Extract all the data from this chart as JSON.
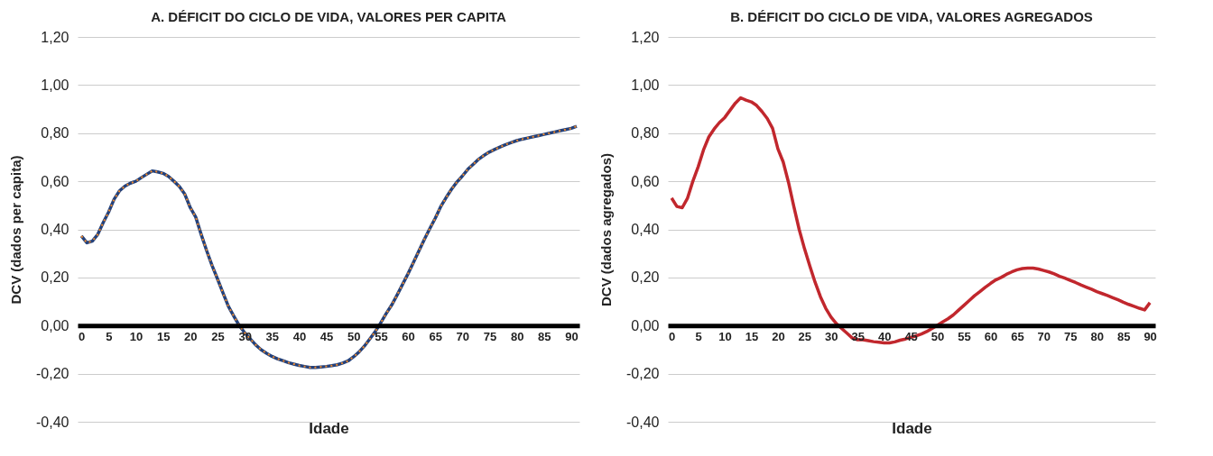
{
  "chart_data": [
    {
      "type": "line",
      "title": "A. DÉFICIT DO CICLO DE VIDA, VALORES PER CAPITA",
      "xlabel": "Idade",
      "ylabel": "DCV (dados per capita)",
      "x": [
        0,
        1,
        2,
        3,
        4,
        5,
        6,
        7,
        8,
        9,
        10,
        11,
        12,
        13,
        14,
        15,
        16,
        17,
        18,
        19,
        20,
        21,
        22,
        23,
        24,
        25,
        26,
        27,
        28,
        29,
        30,
        31,
        32,
        33,
        34,
        35,
        36,
        37,
        38,
        39,
        40,
        41,
        42,
        43,
        44,
        45,
        46,
        47,
        48,
        49,
        50,
        51,
        52,
        53,
        54,
        55,
        56,
        57,
        58,
        59,
        60,
        61,
        62,
        63,
        64,
        65,
        66,
        67,
        68,
        69,
        70,
        71,
        72,
        73,
        74,
        75,
        76,
        77,
        78,
        79,
        80,
        81,
        82,
        83,
        84,
        85,
        86,
        87,
        88,
        89,
        90,
        91
      ],
      "series": [
        {
          "color": "#23417b",
          "line_style": "solid",
          "values": [
            0.372,
            0.344,
            0.351,
            0.379,
            0.428,
            0.472,
            0.525,
            0.56,
            0.58,
            0.592,
            0.6,
            0.615,
            0.629,
            0.643,
            0.639,
            0.633,
            0.62,
            0.6,
            0.578,
            0.546,
            0.49,
            0.451,
            0.379,
            0.312,
            0.25,
            0.194,
            0.136,
            0.08,
            0.039,
            0,
            -0.03,
            -0.055,
            -0.08,
            -0.1,
            -0.115,
            -0.128,
            -0.138,
            -0.146,
            -0.154,
            -0.16,
            -0.166,
            -0.17,
            -0.174,
            -0.174,
            -0.172,
            -0.17,
            -0.167,
            -0.163,
            -0.156,
            -0.147,
            -0.13,
            -0.11,
            -0.085,
            -0.055,
            -0.025,
            0.012,
            0.05,
            0.085,
            0.127,
            0.171,
            0.215,
            0.262,
            0.31,
            0.358,
            0.403,
            0.446,
            0.494,
            0.532,
            0.567,
            0.597,
            0.622,
            0.65,
            0.671,
            0.692,
            0.708,
            0.722,
            0.733,
            0.743,
            0.753,
            0.761,
            0.769,
            0.775,
            0.78,
            0.785,
            0.79,
            0.795,
            0.8,
            0.805,
            0.81,
            0.815,
            0.82,
            0.829
          ]
        },
        {
          "color": "#f08a2c",
          "line_style": "dotted",
          "values": [
            0.372,
            0.344,
            0.351,
            0.379,
            0.428,
            0.472,
            0.525,
            0.56,
            0.58,
            0.592,
            0.6,
            0.615,
            0.629,
            0.643,
            0.639,
            0.633,
            0.62,
            0.6,
            0.578,
            0.546,
            0.49,
            0.451,
            0.379,
            0.312,
            0.25,
            0.194,
            0.136,
            0.08,
            0.039,
            0,
            -0.03,
            -0.055,
            -0.08,
            -0.1,
            -0.115,
            -0.128,
            -0.138,
            -0.146,
            -0.154,
            -0.16,
            -0.166,
            -0.17,
            -0.174,
            -0.174,
            -0.172,
            -0.17,
            -0.167,
            -0.163,
            -0.156,
            -0.147,
            -0.13,
            -0.11,
            -0.085,
            -0.055,
            -0.025,
            0.012,
            0.05,
            0.085,
            0.127,
            0.171,
            0.215,
            0.262,
            0.31,
            0.358,
            0.403,
            0.446,
            0.494,
            0.532,
            0.567,
            0.597,
            0.622,
            0.65,
            0.671,
            0.692,
            0.708,
            0.722,
            0.733,
            0.743,
            0.753,
            0.761,
            0.769,
            0.775,
            0.78,
            0.785,
            0.79,
            0.795,
            0.8,
            0.805,
            0.81,
            0.815,
            0.82,
            0.829
          ]
        }
      ],
      "xlim": [
        -0.7,
        91.5
      ],
      "xticks": [
        0,
        5,
        10,
        15,
        20,
        25,
        30,
        35,
        40,
        45,
        50,
        55,
        60,
        65,
        70,
        75,
        80,
        85,
        90
      ],
      "ylim": [
        -0.4,
        1.2
      ],
      "yticks": [
        {
          "value": -0.4,
          "label": "-0,40"
        },
        {
          "value": -0.2,
          "label": "-0,20"
        },
        {
          "value": 0,
          "label": "0,00"
        },
        {
          "value": 0.2,
          "label": "0,20"
        },
        {
          "value": 0.4,
          "label": "0,40"
        },
        {
          "value": 0.6,
          "label": "0,60"
        },
        {
          "value": 0.8,
          "label": "0,80"
        },
        {
          "value": 1,
          "label": "1,00"
        },
        {
          "value": 1.2,
          "label": "1,20"
        }
      ],
      "grid": "y"
    },
    {
      "type": "line",
      "title": "B. DÉFICIT DO CICLO DE VIDA, VALORES AGREGADOS",
      "xlabel": "Idade",
      "ylabel": "DCV (dados agregados)",
      "x": [
        0,
        1,
        2,
        3,
        4,
        5,
        6,
        7,
        8,
        9,
        10,
        11,
        12,
        13,
        14,
        15,
        16,
        17,
        18,
        19,
        20,
        21,
        22,
        23,
        24,
        25,
        26,
        27,
        28,
        29,
        30,
        31,
        32,
        33,
        34,
        35,
        36,
        37,
        38,
        39,
        40,
        41,
        42,
        43,
        44,
        45,
        46,
        47,
        48,
        49,
        50,
        51,
        52,
        53,
        54,
        55,
        56,
        57,
        58,
        59,
        60,
        61,
        62,
        63,
        64,
        65,
        66,
        67,
        68,
        69,
        70,
        71,
        72,
        73,
        74,
        75,
        76,
        77,
        78,
        79,
        80,
        81,
        82,
        83,
        84,
        85,
        86,
        87,
        88,
        89,
        90
      ],
      "series": [
        {
          "color": "#c1272d",
          "line_style": "solid",
          "values": [
            0.53,
            0.495,
            0.49,
            0.53,
            0.6,
            0.66,
            0.73,
            0.784,
            0.817,
            0.844,
            0.865,
            0.895,
            0.925,
            0.947,
            0.937,
            0.93,
            0.915,
            0.89,
            0.861,
            0.82,
            0.735,
            0.68,
            0.595,
            0.495,
            0.4,
            0.32,
            0.248,
            0.18,
            0.12,
            0.072,
            0.035,
            0.008,
            -0.012,
            -0.032,
            -0.052,
            -0.059,
            -0.059,
            -0.063,
            -0.067,
            -0.069,
            -0.072,
            -0.072,
            -0.068,
            -0.061,
            -0.056,
            -0.049,
            -0.043,
            -0.035,
            -0.025,
            -0.012,
            0.001,
            0.015,
            0.028,
            0.044,
            0.064,
            0.084,
            0.104,
            0.124,
            0.141,
            0.159,
            0.175,
            0.19,
            0.2,
            0.213,
            0.223,
            0.232,
            0.237,
            0.239,
            0.239,
            0.235,
            0.229,
            0.223,
            0.215,
            0.205,
            0.197,
            0.188,
            0.179,
            0.169,
            0.16,
            0.151,
            0.141,
            0.133,
            0.125,
            0.116,
            0.107,
            0.097,
            0.088,
            0.08,
            0.072,
            0.065,
            0.095
          ]
        }
      ],
      "xlim": [
        -0.7,
        91
      ],
      "xticks": [
        0,
        5,
        10,
        15,
        20,
        25,
        30,
        35,
        40,
        45,
        50,
        55,
        60,
        65,
        70,
        75,
        80,
        85,
        90
      ],
      "ylim": [
        -0.4,
        1.2
      ],
      "yticks": [
        {
          "value": -0.4,
          "label": "-0,40"
        },
        {
          "value": -0.2,
          "label": "-0,20"
        },
        {
          "value": 0,
          "label": "0,00"
        },
        {
          "value": 0.2,
          "label": "0,20"
        },
        {
          "value": 0.4,
          "label": "0,40"
        },
        {
          "value": 0.6,
          "label": "0,60"
        },
        {
          "value": 0.8,
          "label": "0,80"
        },
        {
          "value": 1,
          "label": "1,00"
        },
        {
          "value": 1.2,
          "label": "1,20"
        }
      ],
      "grid": "y"
    }
  ]
}
